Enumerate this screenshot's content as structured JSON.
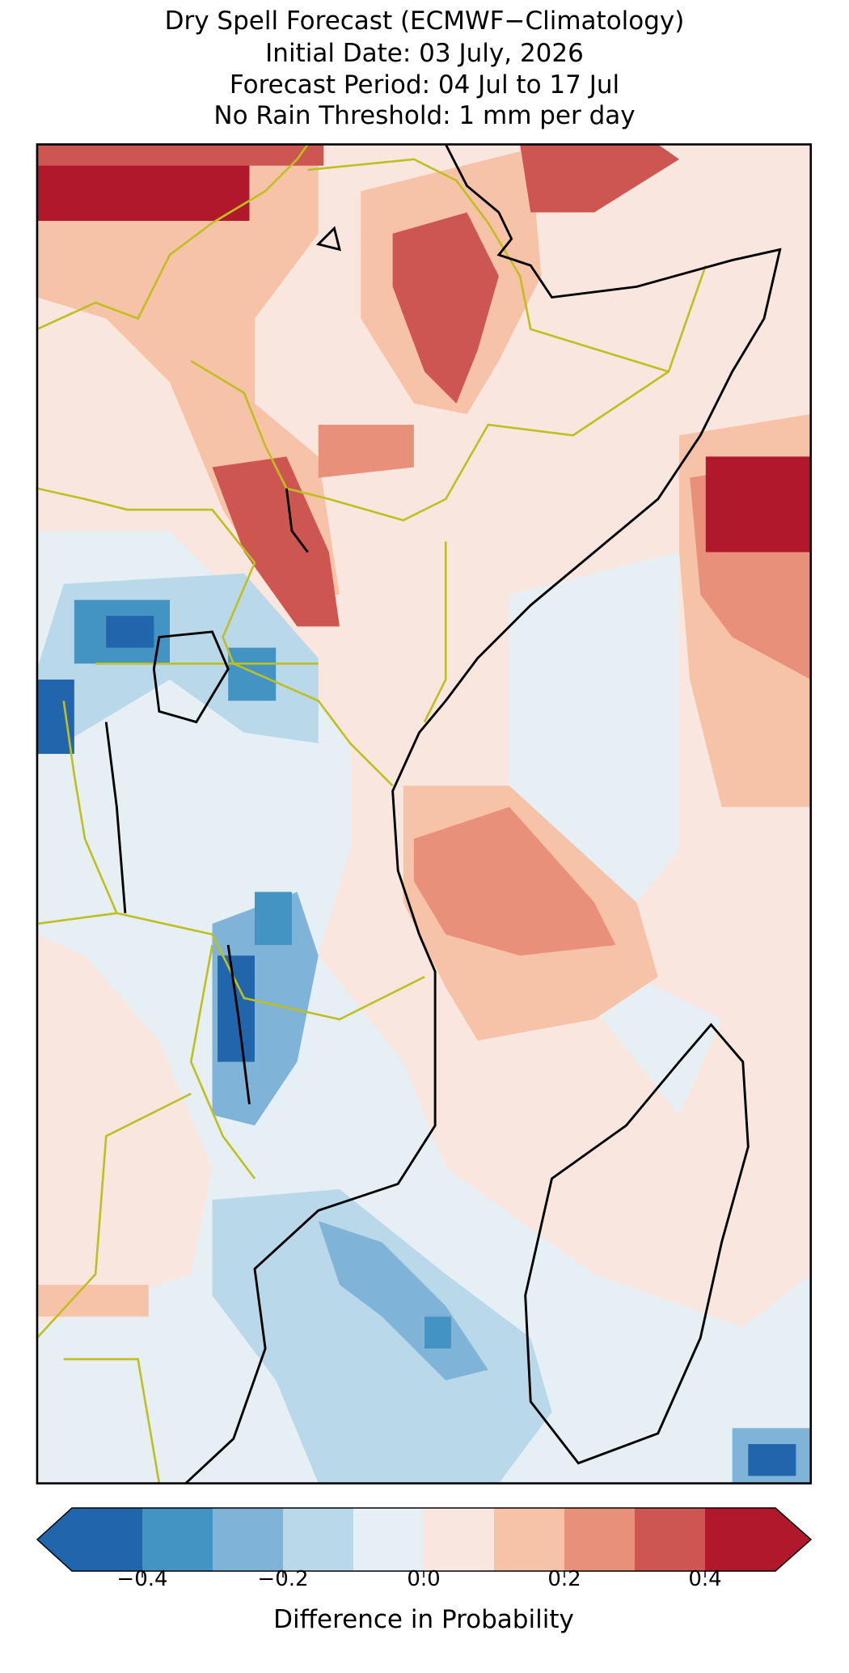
{
  "title_lines": [
    "Dry Spell Forecast (ECMWF−Climatology)",
    "Initial Date: 03 July, 2026",
    "Forecast Period: 04 Jul to 17 Jul",
    "No Rain Threshold: 1 mm per day"
  ],
  "colorbar": {
    "label": "Difference in Probability",
    "bounds": [
      -0.5,
      -0.4,
      -0.3,
      -0.2,
      -0.1,
      0,
      0.1,
      0.2,
      0.3,
      0.4,
      0.5
    ],
    "colors": [
      "#2166ac",
      "#4393c3",
      "#7fb4d8",
      "#b9d9ea",
      "#e6eff4",
      "#f9e7df",
      "#f7c3a8",
      "#e8907a",
      "#cd5650",
      "#b2182b"
    ],
    "under_color": "#2166ac",
    "over_color": "#b2182b",
    "ticks": [
      {
        "value": -0.4,
        "label": "−0.4"
      },
      {
        "value": -0.2,
        "label": "−0.2"
      },
      {
        "value": 0,
        "label": "0.0"
      },
      0.2,
      0.4
    ]
  }
}
